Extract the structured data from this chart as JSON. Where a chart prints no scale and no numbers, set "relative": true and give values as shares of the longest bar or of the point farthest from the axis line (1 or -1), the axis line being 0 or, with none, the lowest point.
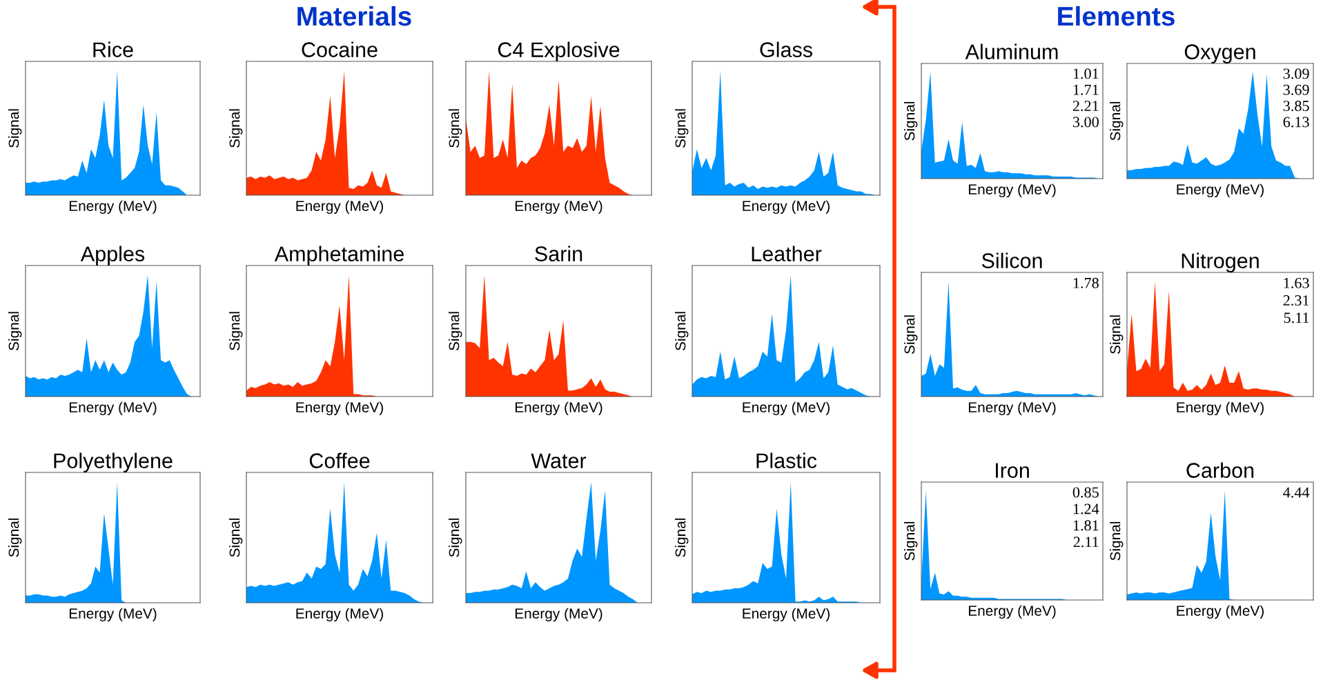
{
  "chart_data": [
    {
      "type": "other",
      "title": "Materials"
    },
    {
      "type": "area",
      "title": "Rice",
      "xlabel": "Energy (MeV)",
      "ylabel": "Signal",
      "relative": true,
      "categories": [
        null,
        null,
        null,
        null,
        null,
        null,
        null,
        null,
        null,
        null,
        null,
        null,
        null,
        null,
        null,
        null,
        null,
        null,
        null,
        null,
        null,
        null,
        null,
        null,
        null,
        null,
        null,
        null,
        null,
        null,
        null,
        null,
        null,
        null,
        null,
        null,
        null,
        null,
        null,
        null,
        null
      ],
      "color": "#0096ff",
      "values": [
        0.1,
        0.1,
        0.11,
        0.1,
        0.11,
        0.11,
        0.12,
        0.12,
        0.13,
        0.12,
        0.14,
        0.16,
        0.15,
        0.28,
        0.18,
        0.37,
        0.3,
        0.48,
        0.77,
        0.4,
        0.3,
        1.0,
        0.12,
        0.14,
        0.18,
        0.22,
        0.35,
        0.73,
        0.4,
        0.25,
        0.67,
        0.12,
        0.08,
        0.08,
        0.07,
        0.06,
        0.03,
        0,
        0,
        0,
        0
      ]
    },
    {
      "type": "area",
      "title": "Cocaine",
      "xlabel": "Energy (MeV)",
      "ylabel": "Signal",
      "relative": true,
      "categories": [
        null,
        null,
        null,
        null,
        null,
        null,
        null,
        null,
        null,
        null,
        null,
        null,
        null,
        null,
        null,
        null,
        null,
        null,
        null,
        null,
        null,
        null,
        null,
        null,
        null,
        null,
        null,
        null,
        null,
        null,
        null,
        null,
        null,
        null,
        null,
        null,
        null,
        null,
        null,
        null,
        null
      ],
      "color": "#ff3300",
      "values": [
        0.14,
        0.15,
        0.13,
        0.15,
        0.14,
        0.16,
        0.13,
        0.14,
        0.15,
        0.13,
        0.14,
        0.12,
        0.13,
        0.14,
        0.2,
        0.35,
        0.28,
        0.45,
        0.8,
        0.3,
        0.55,
        1.0,
        0.06,
        0.05,
        0.08,
        0.07,
        0.1,
        0.2,
        0.08,
        0.06,
        0.18,
        0.03,
        0.02,
        0.01,
        0,
        0,
        0,
        0,
        0,
        0,
        0
      ]
    },
    {
      "type": "area",
      "title": "C4 Explosive",
      "xlabel": "Energy (MeV)",
      "ylabel": "Signal",
      "relative": true,
      "categories": [
        null,
        null,
        null,
        null,
        null,
        null,
        null,
        null,
        null,
        null,
        null,
        null,
        null,
        null,
        null,
        null,
        null,
        null,
        null,
        null,
        null,
        null,
        null,
        null,
        null,
        null,
        null,
        null,
        null,
        null,
        null,
        null,
        null,
        null,
        null,
        null,
        null,
        null,
        null,
        null,
        null
      ],
      "color": "#ff3300",
      "values": [
        0.62,
        0.35,
        0.4,
        0.3,
        0.32,
        1.0,
        0.3,
        0.32,
        0.45,
        0.3,
        0.9,
        0.22,
        0.28,
        0.25,
        0.3,
        0.32,
        0.38,
        0.5,
        0.73,
        0.4,
        0.93,
        0.35,
        0.4,
        0.38,
        0.46,
        0.35,
        0.4,
        0.8,
        0.35,
        0.72,
        0.3,
        0.1,
        0.08,
        0.06,
        0.03,
        0.01,
        0,
        0,
        0,
        0,
        0
      ]
    },
    {
      "type": "area",
      "title": "Glass",
      "xlabel": "Energy (MeV)",
      "ylabel": "Signal",
      "relative": true,
      "categories": [
        null,
        null,
        null,
        null,
        null,
        null,
        null,
        null,
        null,
        null,
        null,
        null,
        null,
        null,
        null,
        null,
        null,
        null,
        null,
        null,
        null,
        null,
        null,
        null,
        null,
        null,
        null,
        null,
        null,
        null,
        null,
        null,
        null,
        null,
        null,
        null,
        null,
        null,
        null,
        null,
        null
      ],
      "color": "#0096ff",
      "values": [
        0.19,
        0.37,
        0.22,
        0.3,
        0.2,
        0.32,
        1.0,
        0.08,
        0.1,
        0.07,
        0.09,
        0.1,
        0.06,
        0.08,
        0.05,
        0.07,
        0.06,
        0.07,
        0.06,
        0.08,
        0.07,
        0.08,
        0.07,
        0.1,
        0.12,
        0.15,
        0.2,
        0.35,
        0.15,
        0.18,
        0.35,
        0.08,
        0.06,
        0.05,
        0.04,
        0.03,
        0.03,
        0.01,
        0.01,
        0,
        0
      ]
    },
    {
      "type": "area",
      "title": "Apples",
      "xlabel": "Energy (MeV)",
      "ylabel": "Signal",
      "relative": true,
      "categories": [
        null,
        null,
        null,
        null,
        null,
        null,
        null,
        null,
        null,
        null,
        null,
        null,
        null,
        null,
        null,
        null,
        null,
        null,
        null,
        null,
        null,
        null,
        null,
        null,
        null,
        null,
        null,
        null,
        null,
        null,
        null,
        null,
        null,
        null,
        null,
        null,
        null,
        null,
        null,
        null,
        null
      ],
      "color": "#0096ff",
      "values": [
        0.17,
        0.15,
        0.16,
        0.14,
        0.15,
        0.14,
        0.16,
        0.15,
        0.18,
        0.17,
        0.18,
        0.2,
        0.22,
        0.2,
        0.48,
        0.2,
        0.3,
        0.22,
        0.3,
        0.2,
        0.28,
        0.22,
        0.18,
        0.2,
        0.28,
        0.45,
        0.5,
        0.7,
        1.0,
        0.4,
        0.95,
        0.3,
        0.28,
        0.3,
        0.22,
        0.15,
        0.08,
        0.02,
        0,
        0,
        0
      ]
    },
    {
      "type": "area",
      "title": "Amphetamine",
      "xlabel": "Energy (MeV)",
      "ylabel": "Signal",
      "relative": true,
      "categories": [
        null,
        null,
        null,
        null,
        null,
        null,
        null,
        null,
        null,
        null,
        null,
        null,
        null,
        null,
        null,
        null,
        null,
        null,
        null,
        null,
        null,
        null,
        null,
        null,
        null,
        null,
        null,
        null,
        null,
        null,
        null,
        null,
        null,
        null,
        null,
        null,
        null,
        null,
        null,
        null,
        null
      ],
      "color": "#ff3300",
      "values": [
        0.05,
        0.08,
        0.07,
        0.09,
        0.1,
        0.12,
        0.1,
        0.11,
        0.09,
        0.1,
        0.08,
        0.12,
        0.09,
        0.1,
        0.11,
        0.13,
        0.2,
        0.3,
        0.25,
        0.45,
        0.75,
        0.3,
        1.0,
        0.02,
        0.02,
        0.01,
        0.01,
        0.01,
        0,
        0,
        0,
        0,
        0,
        0,
        0,
        0,
        0,
        0,
        0,
        0,
        0
      ]
    },
    {
      "type": "area",
      "title": "Sarin",
      "xlabel": "Energy (MeV)",
      "ylabel": "Signal",
      "relative": true,
      "categories": [
        null,
        null,
        null,
        null,
        null,
        null,
        null,
        null,
        null,
        null,
        null,
        null,
        null,
        null,
        null,
        null,
        null,
        null,
        null,
        null,
        null,
        null,
        null,
        null,
        null,
        null,
        null,
        null,
        null,
        null,
        null,
        null,
        null,
        null,
        null,
        null,
        null,
        null,
        null,
        null,
        null
      ],
      "color": "#ff3300",
      "values": [
        0.45,
        0.45,
        0.44,
        0.4,
        1.0,
        0.3,
        0.32,
        0.28,
        0.25,
        0.45,
        0.18,
        0.17,
        0.19,
        0.18,
        0.23,
        0.2,
        0.25,
        0.3,
        0.55,
        0.3,
        0.35,
        0.63,
        0.05,
        0.05,
        0.06,
        0.07,
        0.1,
        0.15,
        0.08,
        0.14,
        0.06,
        0.04,
        0.04,
        0.03,
        0.02,
        0.01,
        0,
        0,
        0,
        0,
        0
      ]
    },
    {
      "type": "area",
      "title": "Leather",
      "xlabel": "Energy (MeV)",
      "ylabel": "Signal",
      "relative": true,
      "categories": [
        null,
        null,
        null,
        null,
        null,
        null,
        null,
        null,
        null,
        null,
        null,
        null,
        null,
        null,
        null,
        null,
        null,
        null,
        null,
        null,
        null,
        null,
        null,
        null,
        null,
        null,
        null,
        null,
        null,
        null,
        null,
        null,
        null,
        null,
        null,
        null,
        null,
        null,
        null,
        null,
        null
      ],
      "color": "#0096ff",
      "values": [
        0.1,
        0.14,
        0.16,
        0.15,
        0.17,
        0.16,
        0.37,
        0.14,
        0.16,
        0.33,
        0.15,
        0.17,
        0.2,
        0.22,
        0.25,
        0.37,
        0.33,
        0.68,
        0.3,
        0.28,
        0.55,
        1.0,
        0.12,
        0.15,
        0.2,
        0.22,
        0.3,
        0.45,
        0.15,
        0.2,
        0.42,
        0.1,
        0.08,
        0.06,
        0.07,
        0.05,
        0.03,
        0.01,
        0,
        0,
        0
      ]
    },
    {
      "type": "area",
      "title": "Polyethylene",
      "xlabel": "Energy (MeV)",
      "ylabel": "Signal",
      "relative": true,
      "categories": [
        null,
        null,
        null,
        null,
        null,
        null,
        null,
        null,
        null,
        null,
        null,
        null,
        null,
        null,
        null,
        null,
        null,
        null,
        null,
        null,
        null,
        null,
        null,
        null,
        null,
        null,
        null,
        null,
        null,
        null,
        null,
        null,
        null,
        null,
        null,
        null,
        null,
        null,
        null,
        null,
        null
      ],
      "color": "#0096ff",
      "values": [
        0.06,
        0.06,
        0.07,
        0.07,
        0.06,
        0.06,
        0.05,
        0.05,
        0.06,
        0.05,
        0.07,
        0.08,
        0.09,
        0.1,
        0.12,
        0.16,
        0.3,
        0.25,
        0.74,
        0.45,
        0.15,
        1.0,
        0.02,
        0,
        0,
        0,
        0,
        0,
        0,
        0,
        0,
        0,
        0,
        0,
        0,
        0,
        0,
        0,
        0,
        0,
        0
      ]
    },
    {
      "type": "area",
      "title": "Coffee",
      "xlabel": "Energy (MeV)",
      "ylabel": "Signal",
      "relative": true,
      "categories": [
        null,
        null,
        null,
        null,
        null,
        null,
        null,
        null,
        null,
        null,
        null,
        null,
        null,
        null,
        null,
        null,
        null,
        null,
        null,
        null,
        null,
        null,
        null,
        null,
        null,
        null,
        null,
        null,
        null,
        null,
        null,
        null,
        null,
        null,
        null,
        null,
        null,
        null,
        null,
        null,
        null
      ],
      "color": "#0096ff",
      "values": [
        0.13,
        0.14,
        0.13,
        0.15,
        0.14,
        0.15,
        0.14,
        0.15,
        0.16,
        0.17,
        0.15,
        0.17,
        0.18,
        0.25,
        0.2,
        0.3,
        0.28,
        0.32,
        0.78,
        0.4,
        0.25,
        1.0,
        0.15,
        0.1,
        0.15,
        0.28,
        0.22,
        0.35,
        0.58,
        0.2,
        0.52,
        0.1,
        0.1,
        0.09,
        0.08,
        0.06,
        0.03,
        0.01,
        0,
        0,
        0
      ]
    },
    {
      "type": "area",
      "title": "Water",
      "xlabel": "Energy (MeV)",
      "ylabel": "Signal",
      "relative": true,
      "categories": [
        null,
        null,
        null,
        null,
        null,
        null,
        null,
        null,
        null,
        null,
        null,
        null,
        null,
        null,
        null,
        null,
        null,
        null,
        null,
        null,
        null,
        null,
        null,
        null,
        null,
        null,
        null,
        null,
        null,
        null,
        null,
        null,
        null,
        null,
        null,
        null,
        null,
        null,
        null,
        null,
        null
      ],
      "color": "#0096ff",
      "values": [
        0.08,
        0.08,
        0.09,
        0.09,
        0.1,
        0.1,
        0.11,
        0.11,
        0.12,
        0.13,
        0.15,
        0.14,
        0.12,
        0.26,
        0.12,
        0.17,
        0.13,
        0.1,
        0.12,
        0.14,
        0.15,
        0.17,
        0.2,
        0.35,
        0.45,
        0.38,
        0.7,
        1.0,
        0.35,
        0.6,
        0.93,
        0.15,
        0.12,
        0.1,
        0.08,
        0.05,
        0.03,
        0,
        0,
        0,
        0
      ]
    },
    {
      "type": "area",
      "title": "Plastic",
      "xlabel": "Energy (MeV)",
      "ylabel": "Signal",
      "relative": true,
      "categories": [
        null,
        null,
        null,
        null,
        null,
        null,
        null,
        null,
        null,
        null,
        null,
        null,
        null,
        null,
        null,
        null,
        null,
        null,
        null,
        null,
        null,
        null,
        null,
        null,
        null,
        null,
        null,
        null,
        null,
        null,
        null,
        null,
        null,
        null,
        null,
        null,
        null,
        null,
        null,
        null,
        null
      ],
      "color": "#0096ff",
      "values": [
        0.07,
        0.09,
        0.08,
        0.1,
        0.09,
        0.1,
        0.1,
        0.11,
        0.11,
        0.12,
        0.12,
        0.13,
        0.15,
        0.18,
        0.16,
        0.33,
        0.28,
        0.3,
        0.78,
        0.4,
        0.2,
        1.0,
        0.01,
        0.01,
        0.02,
        0.01,
        0.02,
        0.05,
        0.02,
        0.03,
        0.05,
        0.01,
        0.01,
        0.01,
        0.01,
        0.01,
        0,
        0,
        0,
        0,
        0
      ]
    },
    {
      "type": "other",
      "title": "Elements"
    },
    {
      "type": "area",
      "title": "Aluminum",
      "xlabel": "Energy (MeV)",
      "ylabel": "Signal",
      "relative": true,
      "categories": [
        null,
        null,
        null,
        null,
        null,
        null,
        null,
        null,
        null,
        null,
        null,
        null,
        null,
        null,
        null,
        null,
        null,
        null,
        null,
        null,
        null,
        null,
        null,
        null,
        null,
        null,
        null,
        null,
        null,
        null,
        null,
        null,
        null,
        null,
        null,
        null,
        null,
        null,
        null,
        null,
        null
      ],
      "color": "#0096ff",
      "values": [
        0.26,
        0.55,
        1.0,
        0.15,
        0.16,
        0.17,
        0.37,
        0.17,
        0.14,
        0.53,
        0.12,
        0.13,
        0.1,
        0.24,
        0.07,
        0.06,
        0.06,
        0.07,
        0.06,
        0.06,
        0.05,
        0.05,
        0.05,
        0.04,
        0.04,
        0.03,
        0.03,
        0.03,
        0.03,
        0.02,
        0.02,
        0.02,
        0.02,
        0.02,
        0.01,
        0.01,
        0.01,
        0.01,
        0.01,
        0,
        0
      ],
      "annotations": [
        "1.01",
        "1.71",
        "2.21",
        "3.00"
      ]
    },
    {
      "type": "area",
      "title": "Oxygen",
      "xlabel": "Energy (MeV)",
      "ylabel": "Signal",
      "relative": true,
      "categories": [
        null,
        null,
        null,
        null,
        null,
        null,
        null,
        null,
        null,
        null,
        null,
        null,
        null,
        null,
        null,
        null,
        null,
        null,
        null,
        null,
        null,
        null,
        null,
        null,
        null,
        null,
        null,
        null,
        null,
        null,
        null,
        null,
        null,
        null,
        null,
        null,
        null,
        null,
        null,
        null,
        null
      ],
      "color": "#0096ff",
      "values": [
        0.08,
        0.08,
        0.09,
        0.09,
        0.1,
        0.1,
        0.11,
        0.11,
        0.12,
        0.12,
        0.16,
        0.15,
        0.13,
        0.32,
        0.15,
        0.14,
        0.17,
        0.2,
        0.14,
        0.12,
        0.13,
        0.15,
        0.18,
        0.25,
        0.47,
        0.42,
        0.65,
        1.0,
        0.6,
        0.3,
        0.98,
        0.3,
        0.17,
        0.15,
        0.12,
        0.12,
        0.01,
        0,
        0,
        0,
        0
      ],
      "annotations": [
        "3.09",
        "3.69",
        "3.85",
        "6.13"
      ]
    },
    {
      "type": "area",
      "title": "Silicon",
      "xlabel": "Energy (MeV)",
      "ylabel": "Signal",
      "relative": true,
      "categories": [
        null,
        null,
        null,
        null,
        null,
        null,
        null,
        null,
        null,
        null,
        null,
        null,
        null,
        null,
        null,
        null,
        null,
        null,
        null,
        null,
        null,
        null,
        null,
        null,
        null,
        null,
        null,
        null,
        null,
        null,
        null,
        null,
        null,
        null,
        null,
        null,
        null,
        null,
        null,
        null,
        null
      ],
      "color": "#0096ff",
      "values": [
        0.18,
        0.2,
        0.37,
        0.18,
        0.28,
        0.25,
        1.0,
        0.07,
        0.08,
        0.06,
        0.05,
        0.05,
        0.1,
        0.03,
        0.02,
        0.02,
        0.02,
        0.02,
        0.03,
        0.03,
        0.04,
        0.05,
        0.04,
        0.03,
        0.03,
        0.02,
        0.02,
        0.02,
        0.02,
        0.02,
        0.02,
        0.02,
        0.02,
        0.02,
        0.03,
        0.02,
        0.01,
        0.02,
        0.01,
        0,
        0
      ],
      "annotations": [
        "1.78"
      ]
    },
    {
      "type": "area",
      "title": "Nitrogen",
      "xlabel": "Energy (MeV)",
      "ylabel": "Signal",
      "relative": true,
      "categories": [
        null,
        null,
        null,
        null,
        null,
        null,
        null,
        null,
        null,
        null,
        null,
        null,
        null,
        null,
        null,
        null,
        null,
        null,
        null,
        null,
        null,
        null,
        null,
        null,
        null,
        null,
        null,
        null,
        null,
        null,
        null,
        null,
        null,
        null,
        null,
        null,
        null,
        null,
        null,
        null,
        null
      ],
      "color": "#ff3300",
      "values": [
        0.23,
        0.72,
        0.22,
        0.24,
        0.33,
        0.25,
        1.0,
        0.22,
        0.28,
        0.92,
        0.08,
        0.05,
        0.12,
        0.05,
        0.06,
        0.1,
        0.06,
        0.1,
        0.2,
        0.1,
        0.12,
        0.27,
        0.12,
        0.12,
        0.22,
        0.07,
        0.06,
        0.07,
        0.07,
        0.06,
        0.06,
        0.05,
        0.05,
        0.04,
        0.03,
        0.02,
        0,
        0,
        0,
        0,
        0
      ],
      "annotations": [
        "1.63",
        "2.31",
        "5.11"
      ]
    },
    {
      "type": "area",
      "title": "Iron",
      "xlabel": "Energy (MeV)",
      "ylabel": "Signal",
      "relative": true,
      "categories": [
        null,
        null,
        null,
        null,
        null,
        null,
        null,
        null,
        null,
        null,
        null,
        null,
        null,
        null,
        null,
        null,
        null,
        null,
        null,
        null,
        null,
        null,
        null,
        null,
        null,
        null,
        null,
        null,
        null,
        null,
        null,
        null,
        null,
        null,
        null,
        null,
        null,
        null,
        null,
        null,
        null
      ],
      "color": "#0096ff",
      "values": [
        0.17,
        1.0,
        0.1,
        0.25,
        0.06,
        0.05,
        0.08,
        0.04,
        0.04,
        0.03,
        0.03,
        0.02,
        0.02,
        0.02,
        0.02,
        0.02,
        0.02,
        0.01,
        0.01,
        0.01,
        0.01,
        0.01,
        0.01,
        0.01,
        0.01,
        0.01,
        0.01,
        0.01,
        0.01,
        0.01,
        0.01,
        0.01,
        0,
        0,
        0,
        0,
        0,
        0,
        0,
        0,
        0
      ],
      "annotations": [
        "0.85",
        "1.24",
        "1.81",
        "2.11"
      ]
    },
    {
      "type": "area",
      "title": "Carbon",
      "xlabel": "Energy (MeV)",
      "ylabel": "Signal",
      "relative": true,
      "categories": [
        null,
        null,
        null,
        null,
        null,
        null,
        null,
        null,
        null,
        null,
        null,
        null,
        null,
        null,
        null,
        null,
        null,
        null,
        null,
        null,
        null,
        null,
        null,
        null,
        null,
        null,
        null,
        null,
        null,
        null,
        null,
        null,
        null,
        null,
        null,
        null,
        null,
        null,
        null,
        null,
        null
      ],
      "color": "#0096ff",
      "values": [
        0.05,
        0.06,
        0.07,
        0.06,
        0.07,
        0.07,
        0.06,
        0.07,
        0.07,
        0.06,
        0.07,
        0.08,
        0.09,
        0.1,
        0.11,
        0.32,
        0.25,
        0.35,
        0.8,
        0.4,
        0.18,
        1.0,
        0.01,
        0,
        0,
        0,
        0,
        0,
        0,
        0,
        0,
        0,
        0,
        0,
        0,
        0,
        0,
        0,
        0,
        0,
        0
      ],
      "annotations": [
        "4.44"
      ]
    }
  ]
}
